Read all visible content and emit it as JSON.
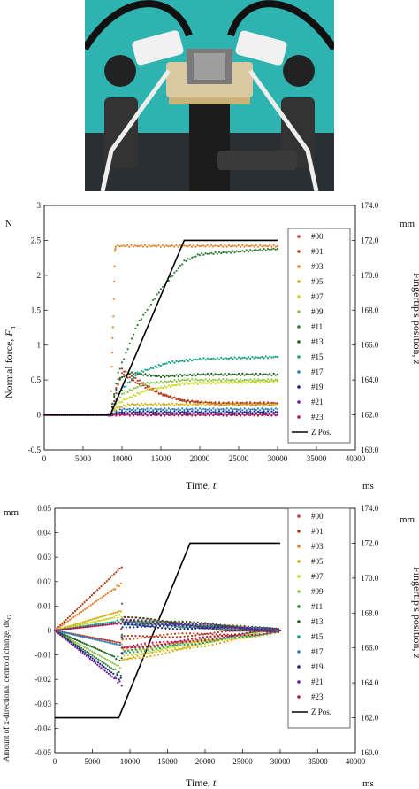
{
  "photo": {
    "description_icon": "robot-finger-sensor-photo"
  },
  "chart_data": [
    {
      "type": "scatter",
      "title": "",
      "xlabel": "Time, ",
      "xlabel_var": "t",
      "xunit": "ms",
      "ylabel": "Normal force, ",
      "ylabel_var": "F",
      "ylabel_sub": "n",
      "yunit": "N",
      "y2label": "Fingertip's position, ",
      "y2label_var": "z",
      "y2unit": "mm",
      "xlim": [
        0,
        40000
      ],
      "ylim": [
        -0.5,
        3
      ],
      "y2lim": [
        160,
        174
      ],
      "xticks": [
        "0",
        "5000",
        "10000",
        "15000",
        "20000",
        "25000",
        "30000",
        "35000",
        "40000"
      ],
      "yticks": [
        "-0.5",
        "0",
        "0.5",
        "1",
        "1.5",
        "2",
        "2.5",
        "3"
      ],
      "y2ticks": [
        "160.0",
        "162.0",
        "164.0",
        "166.0",
        "168.0",
        "170.0",
        "172.0",
        "174.0"
      ],
      "legend": "right",
      "series": [
        {
          "name": "#00",
          "color": "#c0392b",
          "points": [
            [
              0,
              0
            ],
            [
              8500,
              0
            ],
            [
              9000,
              0.3
            ],
            [
              10000,
              0.6
            ],
            [
              12000,
              0.45
            ],
            [
              15000,
              0.3
            ],
            [
              18000,
              0.2
            ],
            [
              22000,
              0.16
            ],
            [
              30000,
              0.16
            ]
          ]
        },
        {
          "name": "#01",
          "color": "#b03a1a",
          "points": [
            [
              0,
              0
            ],
            [
              8500,
              0
            ],
            [
              9000,
              0.2
            ],
            [
              10000,
              0.65
            ],
            [
              12000,
              0.5
            ],
            [
              15000,
              0.3
            ],
            [
              18000,
              0.2
            ],
            [
              22000,
              0.17
            ],
            [
              30000,
              0.17
            ]
          ]
        },
        {
          "name": "#03",
          "color": "#e67e22",
          "points": [
            [
              0,
              0
            ],
            [
              8500,
              0
            ],
            [
              8700,
              0.7
            ],
            [
              8800,
              1.1
            ],
            [
              8900,
              1.4
            ],
            [
              9000,
              1.9
            ],
            [
              9100,
              2.35
            ],
            [
              9200,
              2.42
            ],
            [
              30000,
              2.42
            ]
          ]
        },
        {
          "name": "#05",
          "color": "#d4ac0d",
          "points": [
            [
              0,
              0
            ],
            [
              8500,
              0
            ],
            [
              9500,
              0.1
            ],
            [
              11000,
              0.15
            ],
            [
              30000,
              0.15
            ]
          ]
        },
        {
          "name": "#07",
          "color": "#c9d61a",
          "points": [
            [
              0,
              0
            ],
            [
              8500,
              0
            ],
            [
              10000,
              0.2
            ],
            [
              13000,
              0.35
            ],
            [
              18000,
              0.45
            ],
            [
              30000,
              0.48
            ]
          ]
        },
        {
          "name": "#09",
          "color": "#8bc34a",
          "points": [
            [
              0,
              0
            ],
            [
              8500,
              0
            ],
            [
              10000,
              0.3
            ],
            [
              13000,
              0.45
            ],
            [
              18000,
              0.5
            ],
            [
              30000,
              0.5
            ]
          ]
        },
        {
          "name": "#11",
          "color": "#2e7d32",
          "points": [
            [
              0,
              0
            ],
            [
              8500,
              0
            ],
            [
              9500,
              0.6
            ],
            [
              12000,
              1.3
            ],
            [
              15000,
              1.8
            ],
            [
              18000,
              2.2
            ],
            [
              20000,
              2.3
            ],
            [
              30000,
              2.38
            ]
          ]
        },
        {
          "name": "#13",
          "color": "#1b5e20",
          "points": [
            [
              0,
              0
            ],
            [
              8500,
              0
            ],
            [
              9500,
              0.5
            ],
            [
              11000,
              0.6
            ],
            [
              15000,
              0.55
            ],
            [
              20000,
              0.58
            ],
            [
              30000,
              0.58
            ]
          ]
        },
        {
          "name": "#15",
          "color": "#16a085",
          "points": [
            [
              0,
              0
            ],
            [
              8500,
              0
            ],
            [
              9500,
              0.3
            ],
            [
              12000,
              0.6
            ],
            [
              16000,
              0.75
            ],
            [
              20000,
              0.8
            ],
            [
              30000,
              0.83
            ]
          ]
        },
        {
          "name": "#17",
          "color": "#2980b9",
          "points": [
            [
              0,
              0
            ],
            [
              8500,
              0
            ],
            [
              10000,
              0.08
            ],
            [
              30000,
              0.08
            ]
          ]
        },
        {
          "name": "#19",
          "color": "#1a237e",
          "points": [
            [
              0,
              0
            ],
            [
              8500,
              0
            ],
            [
              10000,
              0.04
            ],
            [
              30000,
              0.04
            ]
          ]
        },
        {
          "name": "#21",
          "color": "#6a1b9a",
          "points": [
            [
              0,
              0
            ],
            [
              8500,
              0
            ],
            [
              10000,
              0.01
            ],
            [
              30000,
              0.01
            ]
          ]
        },
        {
          "name": "#23",
          "color": "#ad1457",
          "points": [
            [
              0,
              0
            ],
            [
              8500,
              0
            ],
            [
              10000,
              0.0
            ],
            [
              30000,
              0.0
            ]
          ]
        }
      ],
      "zpos": {
        "name": "Z Pos.",
        "color": "#000000",
        "points": [
          [
            0,
            162
          ],
          [
            8500,
            162
          ],
          [
            18000,
            172
          ],
          [
            30000,
            172
          ]
        ]
      }
    },
    {
      "type": "scatter",
      "title": "",
      "xlabel": "Time, ",
      "xlabel_var": "t",
      "xunit": "ms",
      "ylabel": "Amount of x-directional centroid change, dx",
      "ylabel_sub": "G",
      "yunit": "mm",
      "y2label": "Fingertip's position, ",
      "y2label_var": "z",
      "y2unit": "mm",
      "xlim": [
        0,
        40000
      ],
      "ylim": [
        -0.05,
        0.05
      ],
      "y2lim": [
        160,
        174
      ],
      "xticks": [
        "0",
        "5000",
        "10000",
        "15000",
        "20000",
        "25000",
        "30000",
        "35000",
        "40000"
      ],
      "yticks": [
        "-0.05",
        "-0.04",
        "-0.03",
        "-0.02",
        "-0.01",
        "0",
        "0.01",
        "0.02",
        "0.03",
        "0.04",
        "0.05"
      ],
      "y2ticks": [
        "160.0",
        "162.0",
        "164.0",
        "166.0",
        "168.0",
        "170.0",
        "172.0",
        "174.0"
      ],
      "legend": "right",
      "series": [
        {
          "name": "#00",
          "color": "#c0392b",
          "points": [
            [
              0,
              0
            ],
            [
              8700,
              -0.005
            ],
            [
              9000,
              0.005
            ],
            [
              30000,
              0
            ]
          ]
        },
        {
          "name": "#01",
          "color": "#b03a1a",
          "points": [
            [
              0,
              0
            ],
            [
              8900,
              0.026
            ],
            [
              9000,
              -0.003
            ],
            [
              30000,
              0
            ]
          ]
        },
        {
          "name": "#03",
          "color": "#e67e22",
          "points": [
            [
              0,
              0
            ],
            [
              8800,
              0.019
            ],
            [
              9100,
              -0.008
            ],
            [
              30000,
              0
            ]
          ]
        },
        {
          "name": "#05",
          "color": "#d4ac0d",
          "points": [
            [
              0,
              0
            ],
            [
              8800,
              0.008
            ],
            [
              9000,
              -0.012
            ],
            [
              30000,
              0
            ]
          ]
        },
        {
          "name": "#07",
          "color": "#c9d61a",
          "points": [
            [
              0,
              0
            ],
            [
              8900,
              0.006
            ],
            [
              9000,
              -0.01
            ],
            [
              30000,
              0
            ]
          ]
        },
        {
          "name": "#09",
          "color": "#8bc34a",
          "points": [
            [
              0,
              0
            ],
            [
              8700,
              -0.015
            ],
            [
              9100,
              0.004
            ],
            [
              30000,
              0
            ]
          ]
        },
        {
          "name": "#11",
          "color": "#2e7d32",
          "points": [
            [
              0,
              0
            ],
            [
              8800,
              -0.018
            ],
            [
              9000,
              0.003
            ],
            [
              30000,
              0
            ]
          ]
        },
        {
          "name": "#13",
          "color": "#1b5e20",
          "points": [
            [
              0,
              0
            ],
            [
              8900,
              -0.012
            ],
            [
              9100,
              0.005
            ],
            [
              30000,
              0
            ]
          ]
        },
        {
          "name": "#15",
          "color": "#16a085",
          "points": [
            [
              0,
              0
            ],
            [
              8800,
              0.004
            ],
            [
              9000,
              -0.009
            ],
            [
              30000,
              0
            ]
          ]
        },
        {
          "name": "#17",
          "color": "#2980b9",
          "points": [
            [
              0,
              0
            ],
            [
              8700,
              -0.006
            ],
            [
              9200,
              0.003
            ],
            [
              30000,
              0
            ]
          ]
        },
        {
          "name": "#19",
          "color": "#1a237e",
          "points": [
            [
              0,
              0
            ],
            [
              8800,
              -0.02
            ],
            [
              9000,
              0.002
            ],
            [
              30000,
              0
            ]
          ]
        },
        {
          "name": "#21",
          "color": "#6a1b9a",
          "points": [
            [
              0,
              0
            ],
            [
              8900,
              -0.022
            ],
            [
              9100,
              0.004
            ],
            [
              30000,
              0
            ]
          ]
        },
        {
          "name": "#23",
          "color": "#ad1457",
          "points": [
            [
              0,
              0
            ],
            [
              8800,
              0.003
            ],
            [
              9000,
              -0.007
            ],
            [
              30000,
              0
            ]
          ]
        }
      ],
      "zpos": {
        "name": "Z Pos.",
        "color": "#000000",
        "points": [
          [
            0,
            162
          ],
          [
            8500,
            162
          ],
          [
            18000,
            172
          ],
          [
            30000,
            172
          ]
        ]
      }
    }
  ]
}
